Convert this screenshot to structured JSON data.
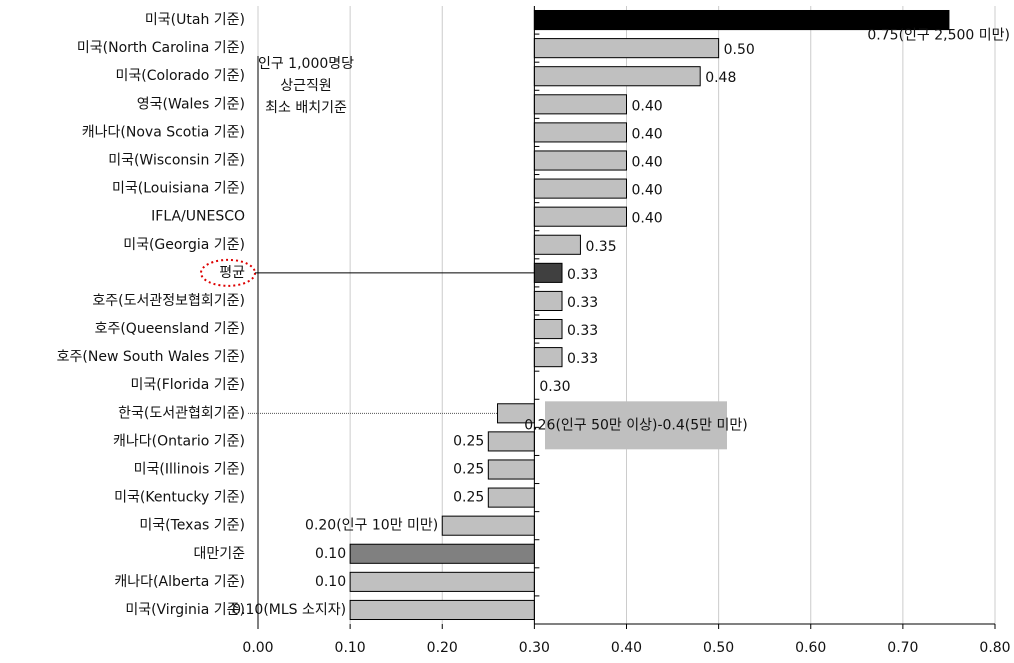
{
  "chart_data": {
    "type": "bar",
    "orientation": "horizontal",
    "annotation": [
      "인구 1,000명당",
      "상근직원",
      "최소 배치기준"
    ],
    "categories": [
      "미국(Utah 기준)",
      "미국(North Carolina 기준)",
      "미국(Colorado 기준)",
      "영국(Wales 기준)",
      "캐나다(Nova Scotia 기준)",
      "미국(Wisconsin 기준)",
      "미국(Louisiana 기준)",
      "IFLA/UNESCO",
      "미국(Georgia 기준)",
      "평균",
      "호주(도서관정보협회기준)",
      "호주(Queensland 기준)",
      "호주(New South Wales 기준)",
      "미국(Florida 기준)",
      "한국(도서관협회기준)",
      "캐나다(Ontario 기준)",
      "미국(Illinois 기준)",
      "미국(Kentucky 기준)",
      "미국(Texas 기준)",
      "대만기준",
      "캐나다(Alberta 기준)",
      "미국(Virginia 기준)"
    ],
    "values": [
      0.75,
      0.5,
      0.48,
      0.4,
      0.4,
      0.4,
      0.4,
      0.4,
      0.35,
      0.33,
      0.33,
      0.33,
      0.33,
      0.3,
      0.26,
      0.25,
      0.25,
      0.25,
      0.2,
      0.1,
      0.1,
      0.1
    ],
    "value_labels": [
      "0.75(인구 2,500 미만)",
      "0.50",
      "0.48",
      "0.40",
      "0.40",
      "0.40",
      "0.40",
      "0.40",
      "0.35",
      "0.33",
      "0.33",
      "0.33",
      "0.33",
      "0.30",
      "0.26(인구 50만 이상)-0.4(5만 미만)",
      "0.25",
      "0.25",
      "0.25",
      "0.20(인구 10만 미만)",
      "0.10",
      "0.10",
      "0.10(MLS 소지자)"
    ],
    "colors": [
      "#000000",
      "#c0c0c0",
      "#c0c0c0",
      "#c0c0c0",
      "#c0c0c0",
      "#c0c0c0",
      "#c0c0c0",
      "#c0c0c0",
      "#c0c0c0",
      "#404040",
      "#c0c0c0",
      "#c0c0c0",
      "#c0c0c0",
      "#c0c0c0",
      "#c0c0c0",
      "#c0c0c0",
      "#c0c0c0",
      "#c0c0c0",
      "#c0c0c0",
      "#808080",
      "#c0c0c0",
      "#c0c0c0"
    ],
    "baseline": 0.3,
    "xlim": [
      0,
      0.8
    ],
    "xticks": [
      {
        "value": 0,
        "label": "0.00"
      },
      {
        "value": 0.1,
        "label": "0.10"
      },
      {
        "value": 0.2,
        "label": "0.20"
      },
      {
        "value": 0.3,
        "label": "0.30"
      },
      {
        "value": 0.4,
        "label": "0.40"
      },
      {
        "value": 0.5,
        "label": "0.50"
      },
      {
        "value": 0.6,
        "label": "0.60"
      },
      {
        "value": 0.7,
        "label": "0.70"
      },
      {
        "value": 0.8,
        "label": "0.80"
      }
    ],
    "grid": true
  }
}
